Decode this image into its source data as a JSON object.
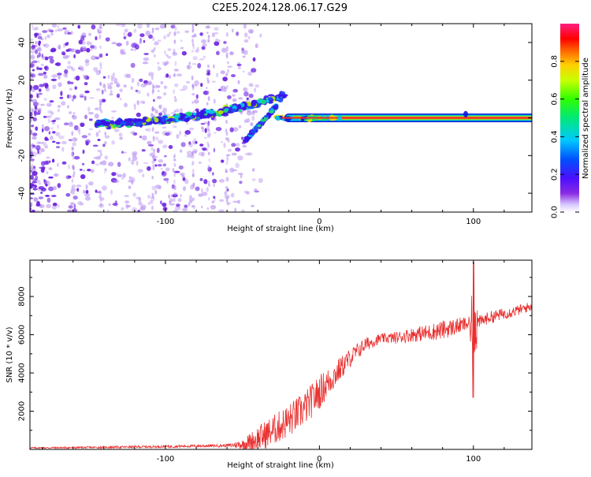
{
  "title": "C2E5.2024.128.06.17.G29",
  "colors": {
    "snr_line": "#e8302f",
    "frame": "#000000",
    "spec_faint": "#b48cf0",
    "spec_mid": "#6a1fe0",
    "spec_band": "#2b3cf0",
    "ridge": "#e8302f"
  },
  "chart_data": [
    {
      "type": "heatmap",
      "title": "C2E5.2024.128.06.17.G29",
      "xlabel": "Height of straight line (km)",
      "ylabel": "Frequency (Hz)",
      "xlim": [
        -188,
        138
      ],
      "ylim": [
        -50,
        50
      ],
      "xticks": [
        -100,
        0,
        100
      ],
      "xtick_labels": [
        "-100",
        "0",
        "100"
      ],
      "yticks": [
        -40,
        -20,
        0,
        20,
        40
      ],
      "ytick_labels": [
        "-40",
        "-20",
        "0",
        "20",
        "40"
      ],
      "colorbar": {
        "label": "Normalized spectral amplitude",
        "range": [
          0,
          1
        ],
        "ticks": [
          0.0,
          0.2,
          0.4,
          0.6,
          0.8
        ],
        "tick_labels": [
          "0.0",
          "0.2",
          "0.4",
          "0.6",
          "0.8"
        ],
        "colormap": "rainbow (white to purple to blue to cyan to green to yellow to red to magenta)"
      },
      "features": [
        {
          "name": "steady tone",
          "x_range": [
            -20,
            138
          ],
          "frequency_hz": 0,
          "amplitude": 0.95
        },
        {
          "name": "noisy band",
          "x_range": [
            -145,
            -22
          ],
          "frequency_hz_start": -3,
          "frequency_hz_end": 12,
          "amplitude": 0.35
        },
        {
          "name": "branch",
          "x_range": [
            -48,
            -28
          ],
          "frequency_hz_start": -12,
          "frequency_hz_end": 6,
          "amplitude": 0.3
        },
        {
          "name": "background noise",
          "x_range": [
            -188,
            -40
          ],
          "frequency_hz_range": [
            -50,
            50
          ],
          "amplitude": 0.08
        }
      ],
      "grid": false
    },
    {
      "type": "line",
      "xlabel": "Height of straight line (km)",
      "ylabel": "SNR (10 * v/v)",
      "xlim": [
        -188,
        138
      ],
      "ylim": [
        0,
        9900
      ],
      "xticks": [
        -100,
        0,
        100
      ],
      "xtick_labels": [
        "-100",
        "0",
        "100"
      ],
      "yticks": [
        2000,
        4000,
        6000,
        8000
      ],
      "ytick_labels": [
        "2000",
        "4000",
        "6000",
        "8000"
      ],
      "grid": false,
      "trend": {
        "x": [
          -188,
          -150,
          -130,
          -100,
          -80,
          -60,
          -50,
          -40,
          -30,
          -20,
          -10,
          0,
          10,
          20,
          30,
          40,
          50,
          60,
          70,
          80,
          90,
          95,
          100,
          105,
          110,
          120,
          130,
          138
        ],
        "y": [
          80,
          100,
          120,
          150,
          180,
          200,
          260,
          550,
          1000,
          1500,
          2100,
          3000,
          3900,
          4800,
          5500,
          5800,
          5850,
          6000,
          6100,
          6250,
          6450,
          6550,
          6600,
          6700,
          6900,
          7100,
          7300,
          7500
        ]
      },
      "noise_amplitude": {
        "x": [
          -188,
          -60,
          -50,
          -40,
          -20,
          0,
          20,
          40,
          80,
          100,
          138
        ],
        "y": [
          40,
          80,
          250,
          700,
          900,
          900,
          500,
          250,
          500,
          350,
          250
        ]
      },
      "spike": {
        "x": 100,
        "y_max": 9800,
        "y_min": 2700
      }
    }
  ]
}
